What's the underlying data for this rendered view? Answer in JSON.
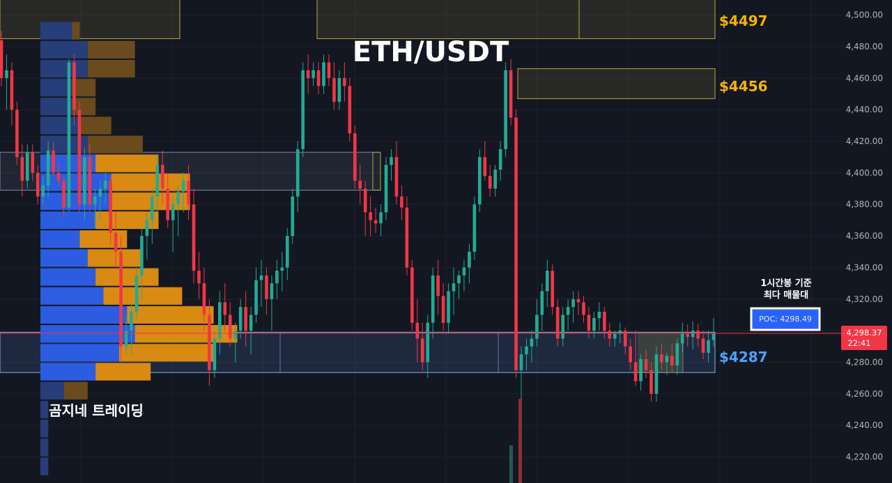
{
  "chart_data": {
    "type": "candlestick",
    "title": "ETH/USDT",
    "watermark": "곰지네 트레이딩",
    "y_axis": {
      "ticks": [
        4220,
        4240,
        4260,
        4280,
        4300,
        4320,
        4340,
        4360,
        4380,
        4400,
        4420,
        4440,
        4460,
        4480,
        4500
      ],
      "tick_labels": [
        "4,220.00",
        "4,240.00",
        "4,260.00",
        "4,280.00",
        "4,300.00",
        "4,320.00",
        "4,340.00",
        "4,360.00",
        "4,380.00",
        "4,400.00",
        "4,420.00",
        "4,440.00",
        "4,460.00",
        "4,480.00",
        "4,500.00"
      ],
      "range": [
        4203.5,
        4509.5
      ]
    },
    "current_price": {
      "label": "4,298.37",
      "value": 4298.37,
      "countdown": "22:41",
      "color": "#f23645"
    },
    "poc": {
      "label": "POC: 4298.49",
      "value": 4298.49,
      "note_line1": "1시간봉 기준",
      "note_line2": "최다 매물대"
    },
    "levels": [
      {
        "label": "$4497",
        "value": 4497,
        "color": "#f5b400"
      },
      {
        "label": "$4456",
        "value": 4456,
        "color": "#f5b400"
      },
      {
        "label": "$4287",
        "value": 4287,
        "color": "#4aa3ff"
      }
    ],
    "zones": [
      {
        "kind": "supply",
        "low": 4485,
        "high": 4510
      },
      {
        "kind": "supply",
        "low": 4447,
        "high": 4466
      },
      {
        "kind": "supply",
        "low": 4389,
        "high": 4413
      },
      {
        "kind": "demand",
        "low": 4273.5,
        "high": 4299
      }
    ],
    "volume_profile": {
      "bins": [
        {
          "low": 4484,
          "high": 4496,
          "up": 4,
          "down": 1
        },
        {
          "low": 4472,
          "high": 4484,
          "up": 6,
          "down": 6
        },
        {
          "low": 4460,
          "high": 4472,
          "up": 6,
          "down": 6
        },
        {
          "low": 4448,
          "high": 4460,
          "up": 4,
          "down": 3
        },
        {
          "low": 4436,
          "high": 4448,
          "up": 4,
          "down": 3
        },
        {
          "low": 4424,
          "high": 4436,
          "up": 5,
          "down": 4
        },
        {
          "low": 4412,
          "high": 4424,
          "up": 6,
          "down": 7
        },
        {
          "low": 4400,
          "high": 4412,
          "up": 7,
          "down": 8
        },
        {
          "low": 4388,
          "high": 4400,
          "up": 9,
          "down": 10
        },
        {
          "low": 4376,
          "high": 4388,
          "up": 9,
          "down": 10
        },
        {
          "low": 4364,
          "high": 4376,
          "up": 7,
          "down": 8
        },
        {
          "low": 4352,
          "high": 4364,
          "up": 5,
          "down": 6
        },
        {
          "low": 4340,
          "high": 4352,
          "up": 6,
          "down": 7
        },
        {
          "low": 4328,
          "high": 4340,
          "up": 7,
          "down": 8
        },
        {
          "low": 4316,
          "high": 4328,
          "up": 8,
          "down": 10
        },
        {
          "low": 4304,
          "high": 4316,
          "up": 11,
          "down": 11
        },
        {
          "low": 4292,
          "high": 4304,
          "up": 12,
          "down": 13
        },
        {
          "low": 4280,
          "high": 4292,
          "up": 10,
          "down": 12
        },
        {
          "low": 4268,
          "high": 4280,
          "up": 7,
          "down": 7
        },
        {
          "low": 4256,
          "high": 4268,
          "up": 3,
          "down": 3
        },
        {
          "low": 4244,
          "high": 4256,
          "up": 1,
          "down": 0
        },
        {
          "low": 4232,
          "high": 4244,
          "up": 1,
          "down": 0
        },
        {
          "low": 4220,
          "high": 4232,
          "up": 1,
          "down": 0
        },
        {
          "low": 4208,
          "high": 4220,
          "up": 1,
          "down": 0
        }
      ]
    },
    "ohlc": [
      [
        4484,
        4490,
        4455,
        4460
      ],
      [
        4460,
        4475,
        4440,
        4465
      ],
      [
        4465,
        4470,
        4430,
        4440
      ],
      [
        4440,
        4445,
        4405,
        4410
      ],
      [
        4410,
        4418,
        4385,
        4395
      ],
      [
        4395,
        4418,
        4390,
        4413
      ],
      [
        4413,
        4418,
        4395,
        4400
      ],
      [
        4400,
        4405,
        4380,
        4385
      ],
      [
        4385,
        4398,
        4380,
        4392
      ],
      [
        4392,
        4420,
        4385,
        4414
      ],
      [
        4414,
        4420,
        4398,
        4400
      ],
      [
        4400,
        4406,
        4392,
        4395
      ],
      [
        4395,
        4398,
        4372,
        4378
      ],
      [
        4378,
        4472,
        4375,
        4470
      ],
      [
        4470,
        4475,
        4430,
        4440
      ],
      [
        4440,
        4445,
        4375,
        4380
      ],
      [
        4380,
        4416,
        4370,
        4410
      ],
      [
        4410,
        4418,
        4375,
        4380
      ],
      [
        4380,
        4390,
        4365,
        4385
      ],
      [
        4385,
        4395,
        4370,
        4390
      ],
      [
        4390,
        4400,
        4380,
        4395
      ],
      [
        4395,
        4398,
        4355,
        4362
      ],
      [
        4362,
        4375,
        4340,
        4350
      ],
      [
        4350,
        4360,
        4280,
        4290
      ],
      [
        4290,
        4310,
        4285,
        4300
      ],
      [
        4300,
        4318,
        4285,
        4312
      ],
      [
        4312,
        4340,
        4308,
        4335
      ],
      [
        4335,
        4365,
        4320,
        4360
      ],
      [
        4360,
        4375,
        4345,
        4370
      ],
      [
        4370,
        4390,
        4355,
        4385
      ],
      [
        4385,
        4410,
        4375,
        4405
      ],
      [
        4405,
        4414,
        4380,
        4390
      ],
      [
        4390,
        4400,
        4365,
        4370
      ],
      [
        4370,
        4385,
        4350,
        4380
      ],
      [
        4380,
        4392,
        4360,
        4388
      ],
      [
        4388,
        4400,
        4375,
        4395
      ],
      [
        4395,
        4405,
        4370,
        4380
      ],
      [
        4380,
        4390,
        4330,
        4338
      ],
      [
        4338,
        4350,
        4320,
        4330
      ],
      [
        4330,
        4340,
        4300,
        4310
      ],
      [
        4310,
        4320,
        4265,
        4275
      ],
      [
        4275,
        4300,
        4270,
        4295
      ],
      [
        4295,
        4325,
        4285,
        4318
      ],
      [
        4318,
        4330,
        4300,
        4310
      ],
      [
        4310,
        4318,
        4290,
        4295
      ],
      [
        4295,
        4305,
        4280,
        4300
      ],
      [
        4300,
        4320,
        4295,
        4315
      ],
      [
        4315,
        4325,
        4290,
        4300
      ],
      [
        4300,
        4315,
        4285,
        4310
      ],
      [
        4310,
        4340,
        4305,
        4332
      ],
      [
        4332,
        4345,
        4315,
        4335
      ],
      [
        4335,
        4340,
        4310,
        4320
      ],
      [
        4320,
        4335,
        4300,
        4330
      ],
      [
        4330,
        4345,
        4320,
        4338
      ],
      [
        4338,
        4350,
        4325,
        4340
      ],
      [
        4340,
        4365,
        4332,
        4360
      ],
      [
        4360,
        4390,
        4355,
        4385
      ],
      [
        4385,
        4420,
        4375,
        4415
      ],
      [
        4415,
        4470,
        4410,
        4465
      ],
      [
        4465,
        4475,
        4450,
        4460
      ],
      [
        4460,
        4470,
        4455,
        4465
      ],
      [
        4465,
        4470,
        4450,
        4455
      ],
      [
        4455,
        4475,
        4450,
        4470
      ],
      [
        4470,
        4475,
        4455,
        4460
      ],
      [
        4460,
        4470,
        4440,
        4445
      ],
      [
        4445,
        4465,
        4440,
        4460
      ],
      [
        4460,
        4470,
        4445,
        4455
      ],
      [
        4455,
        4460,
        4420,
        4425
      ],
      [
        4425,
        4430,
        4390,
        4395
      ],
      [
        4395,
        4405,
        4380,
        4390
      ],
      [
        4390,
        4395,
        4360,
        4375
      ],
      [
        4375,
        4385,
        4360,
        4370
      ],
      [
        4370,
        4378,
        4362,
        4368
      ],
      [
        4368,
        4380,
        4360,
        4375
      ],
      [
        4375,
        4410,
        4370,
        4405
      ],
      [
        4405,
        4415,
        4395,
        4410
      ],
      [
        4410,
        4420,
        4380,
        4385
      ],
      [
        4385,
        4392,
        4370,
        4378
      ],
      [
        4378,
        4385,
        4335,
        4340
      ],
      [
        4340,
        4345,
        4300,
        4305
      ],
      [
        4305,
        4320,
        4280,
        4295
      ],
      [
        4295,
        4305,
        4275,
        4280
      ],
      [
        4280,
        4310,
        4270,
        4305
      ],
      [
        4305,
        4340,
        4295,
        4335
      ],
      [
        4335,
        4345,
        4310,
        4322
      ],
      [
        4322,
        4330,
        4300,
        4305
      ],
      [
        4305,
        4330,
        4298,
        4325
      ],
      [
        4325,
        4340,
        4310,
        4330
      ],
      [
        4330,
        4338,
        4320,
        4335
      ],
      [
        4335,
        4345,
        4325,
        4340
      ],
      [
        4340,
        4355,
        4330,
        4350
      ],
      [
        4350,
        4385,
        4345,
        4380
      ],
      [
        4380,
        4415,
        4375,
        4410
      ],
      [
        4410,
        4420,
        4395,
        4398
      ],
      [
        4398,
        4405,
        4385,
        4390
      ],
      [
        4390,
        4405,
        4385,
        4402
      ],
      [
        4402,
        4420,
        4395,
        4415
      ],
      [
        4415,
        4470,
        4410,
        4465
      ],
      [
        4465,
        4472,
        4430,
        4435
      ],
      [
        4435,
        4440,
        4270,
        4275
      ],
      [
        4275,
        4290,
        4255,
        4285
      ],
      [
        4285,
        4295,
        4275,
        4290
      ],
      [
        4290,
        4300,
        4280,
        4295
      ],
      [
        4295,
        4320,
        4290,
        4310
      ],
      [
        4310,
        4330,
        4300,
        4325
      ],
      [
        4325,
        4345,
        4315,
        4338
      ],
      [
        4338,
        4342,
        4310,
        4315
      ],
      [
        4315,
        4320,
        4290,
        4295
      ],
      [
        4295,
        4315,
        4290,
        4310
      ],
      [
        4310,
        4320,
        4300,
        4315
      ],
      [
        4315,
        4325,
        4305,
        4320
      ],
      [
        4320,
        4325,
        4310,
        4318
      ],
      [
        4318,
        4322,
        4305,
        4310
      ],
      [
        4310,
        4315,
        4295,
        4300
      ],
      [
        4300,
        4312,
        4295,
        4308
      ],
      [
        4308,
        4318,
        4300,
        4312
      ],
      [
        4312,
        4315,
        4295,
        4300
      ],
      [
        4300,
        4305,
        4290,
        4295
      ],
      [
        4295,
        4300,
        4290,
        4298
      ],
      [
        4298,
        4305,
        4292,
        4300
      ],
      [
        4300,
        4302,
        4285,
        4290
      ],
      [
        4290,
        4295,
        4275,
        4280
      ],
      [
        4280,
        4300,
        4265,
        4268
      ],
      [
        4268,
        4285,
        4262,
        4282
      ],
      [
        4282,
        4288,
        4270,
        4275
      ],
      [
        4275,
        4280,
        4255,
        4260
      ],
      [
        4260,
        4290,
        4255,
        4285
      ],
      [
        4285,
        4292,
        4275,
        4280
      ],
      [
        4280,
        4286,
        4272,
        4284
      ],
      [
        4284,
        4292,
        4274,
        4278
      ],
      [
        4278,
        4295,
        4272,
        4292
      ],
      [
        4292,
        4305,
        4286,
        4298
      ],
      [
        4298,
        4304,
        4290,
        4296
      ],
      [
        4296,
        4306,
        4288,
        4300
      ],
      [
        4300,
        4304,
        4290,
        4295
      ],
      [
        4295,
        4300,
        4282,
        4286
      ],
      [
        4286,
        4300,
        4280,
        4294
      ],
      [
        4294,
        4308,
        4290,
        4298
      ]
    ]
  }
}
